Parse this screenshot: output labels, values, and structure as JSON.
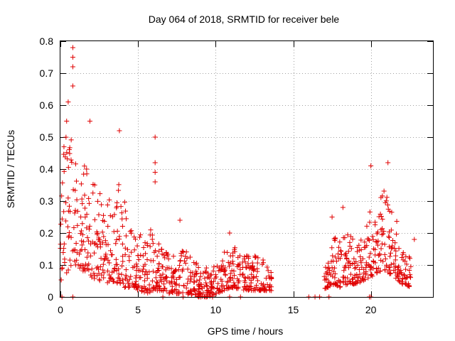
{
  "chart_data": {
    "type": "scatter",
    "title": "Day 064 of 2018, SRMTID for receiver bele",
    "xlabel": "GPS time / hours",
    "ylabel": "SRMTID / TECUs",
    "xlim": [
      0,
      24
    ],
    "ylim": [
      0,
      0.8
    ],
    "xticks": [
      0,
      5,
      10,
      15,
      20
    ],
    "yticks": [
      0,
      0.1,
      0.2,
      0.3,
      0.4,
      0.5,
      0.6,
      0.7,
      0.8
    ],
    "xtick_labels": [
      "0",
      "5",
      "10",
      "15",
      "20"
    ],
    "ytick_labels": [
      "0",
      "0.1",
      "0.2",
      "0.3",
      "0.4",
      "0.5",
      "0.6",
      "0.7",
      "0.8"
    ],
    "grid": true,
    "marker": "+",
    "color": "#e00000",
    "series": [
      {
        "name": "SRMTID",
        "envelope": [
          {
            "t": 0.0,
            "lo": 0.05,
            "hi": 0.5
          },
          {
            "t": 0.5,
            "lo": 0.08,
            "hi": 0.55
          },
          {
            "t": 1.0,
            "lo": 0.1,
            "hi": 0.5
          },
          {
            "t": 1.5,
            "lo": 0.08,
            "hi": 0.45
          },
          {
            "t": 2.0,
            "lo": 0.06,
            "hi": 0.4
          },
          {
            "t": 2.5,
            "lo": 0.05,
            "hi": 0.33
          },
          {
            "t": 3.0,
            "lo": 0.04,
            "hi": 0.3
          },
          {
            "t": 3.5,
            "lo": 0.05,
            "hi": 0.4
          },
          {
            "t": 4.0,
            "lo": 0.03,
            "hi": 0.33
          },
          {
            "t": 4.5,
            "lo": 0.03,
            "hi": 0.22
          },
          {
            "t": 5.0,
            "lo": 0.02,
            "hi": 0.2
          },
          {
            "t": 5.5,
            "lo": 0.01,
            "hi": 0.2
          },
          {
            "t": 6.0,
            "lo": 0.02,
            "hi": 0.22
          },
          {
            "t": 6.5,
            "lo": 0.02,
            "hi": 0.16
          },
          {
            "t": 7.0,
            "lo": 0.01,
            "hi": 0.14
          },
          {
            "t": 8.0,
            "lo": 0.01,
            "hi": 0.15
          },
          {
            "t": 9.0,
            "lo": 0.0,
            "hi": 0.12
          },
          {
            "t": 9.6,
            "lo": 0.0,
            "hi": 0.08
          },
          {
            "t": 10.5,
            "lo": 0.02,
            "hi": 0.14
          },
          {
            "t": 11.0,
            "lo": 0.03,
            "hi": 0.16
          },
          {
            "t": 12.0,
            "lo": 0.02,
            "hi": 0.14
          },
          {
            "t": 13.0,
            "lo": 0.02,
            "hi": 0.12
          },
          {
            "t": 13.6,
            "lo": 0.02,
            "hi": 0.09
          },
          {
            "t": 17.0,
            "lo": 0.02,
            "hi": 0.14
          },
          {
            "t": 17.5,
            "lo": 0.04,
            "hi": 0.18
          },
          {
            "t": 18.0,
            "lo": 0.03,
            "hi": 0.2
          },
          {
            "t": 18.5,
            "lo": 0.04,
            "hi": 0.2
          },
          {
            "t": 19.0,
            "lo": 0.04,
            "hi": 0.18
          },
          {
            "t": 19.5,
            "lo": 0.05,
            "hi": 0.2
          },
          {
            "t": 20.0,
            "lo": 0.06,
            "hi": 0.28
          },
          {
            "t": 20.5,
            "lo": 0.08,
            "hi": 0.3
          },
          {
            "t": 21.0,
            "lo": 0.08,
            "hi": 0.35
          },
          {
            "t": 21.5,
            "lo": 0.06,
            "hi": 0.28
          },
          {
            "t": 22.0,
            "lo": 0.04,
            "hi": 0.16
          },
          {
            "t": 22.6,
            "lo": 0.03,
            "hi": 0.12
          }
        ],
        "outliers": [
          {
            "x": 0.8,
            "y": 0.78
          },
          {
            "x": 0.8,
            "y": 0.75
          },
          {
            "x": 0.8,
            "y": 0.72
          },
          {
            "x": 0.8,
            "y": 0.66
          },
          {
            "x": 0.5,
            "y": 0.61
          },
          {
            "x": 0.4,
            "y": 0.55
          },
          {
            "x": 1.9,
            "y": 0.55
          },
          {
            "x": 3.8,
            "y": 0.52
          },
          {
            "x": 6.1,
            "y": 0.5
          },
          {
            "x": 6.1,
            "y": 0.42
          },
          {
            "x": 6.1,
            "y": 0.39
          },
          {
            "x": 6.1,
            "y": 0.36
          },
          {
            "x": 7.7,
            "y": 0.24
          },
          {
            "x": 10.9,
            "y": 0.2
          },
          {
            "x": 17.5,
            "y": 0.25
          },
          {
            "x": 18.2,
            "y": 0.28
          },
          {
            "x": 20.0,
            "y": 0.41
          },
          {
            "x": 21.1,
            "y": 0.42
          },
          {
            "x": 22.8,
            "y": 0.18
          }
        ],
        "zero_markers": [
          0.1,
          0.8,
          6.6,
          7.9,
          8.9,
          9.4,
          9.8,
          10.9,
          11.6,
          16.0,
          16.4,
          16.7,
          17.3,
          19.9,
          20.0
        ]
      }
    ]
  }
}
